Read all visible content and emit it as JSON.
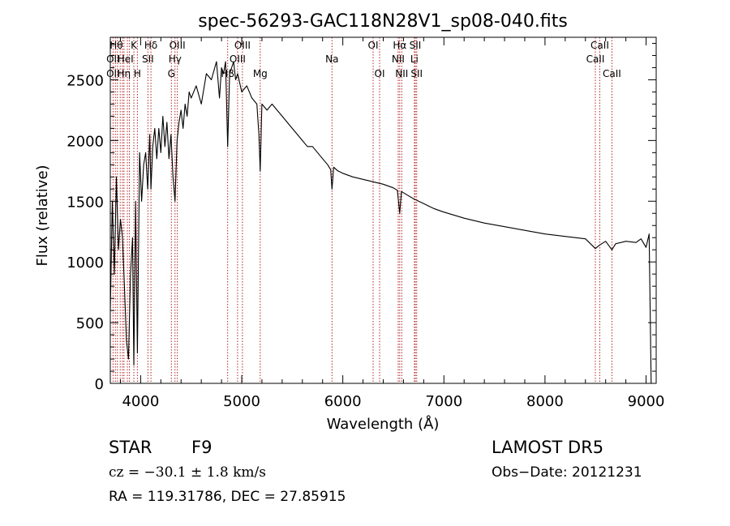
{
  "chart_data": {
    "type": "line",
    "title": "spec-56293-GAC118N28V1_sp08-040.fits",
    "xlabel": "Wavelength (Å)",
    "ylabel": "Flux (relative)",
    "xlim": [
      3700,
      9100
    ],
    "ylim": [
      0,
      2850
    ],
    "xticks": [
      4000,
      5000,
      6000,
      7000,
      8000,
      9000
    ],
    "yticks": [
      0,
      500,
      1000,
      1500,
      2000,
      2500
    ],
    "grid": false,
    "series": [
      {
        "x": [
          3700,
          3720,
          3740,
          3760,
          3780,
          3800,
          3820,
          3840,
          3860,
          3880,
          3900,
          3920,
          3933,
          3950,
          3968,
          3990,
          4010,
          4030,
          4050,
          4070,
          4090,
          4102,
          4120,
          4140,
          4160,
          4180,
          4200,
          4220,
          4240,
          4260,
          4280,
          4300,
          4320,
          4340,
          4360,
          4380,
          4400,
          4420,
          4440,
          4460,
          4480,
          4500,
          4550,
          4600,
          4650,
          4700,
          4750,
          4780,
          4800,
          4820,
          4840,
          4861,
          4880,
          4900,
          4920,
          4940,
          4960,
          5000,
          5050,
          5100,
          5150,
          5170,
          5183,
          5200,
          5250,
          5300,
          5350,
          5400,
          5450,
          5500,
          5550,
          5600,
          5650,
          5700,
          5750,
          5800,
          5850,
          5880,
          5893,
          5910,
          5950,
          6000,
          6100,
          6200,
          6300,
          6400,
          6500,
          6540,
          6563,
          6580,
          6600,
          6700,
          6800,
          6900,
          7000,
          7200,
          7400,
          7600,
          7800,
          8000,
          8200,
          8400,
          8498,
          8542,
          8600,
          8662,
          8700,
          8800,
          8900,
          8950,
          9000,
          9030,
          9050
        ],
        "values": [
          600,
          1500,
          900,
          1700,
          1100,
          1350,
          1200,
          800,
          350,
          200,
          900,
          1200,
          150,
          1500,
          250,
          1900,
          1500,
          1800,
          1900,
          1600,
          2050,
          1600,
          1950,
          2100,
          1850,
          2100,
          1900,
          2200,
          1950,
          2150,
          1850,
          2050,
          1700,
          1500,
          2000,
          2150,
          2250,
          2100,
          2300,
          2200,
          2400,
          2350,
          2450,
          2300,
          2550,
          2500,
          2650,
          2350,
          2600,
          2550,
          2650,
          1950,
          2550,
          2600,
          2650,
          2500,
          2550,
          2400,
          2450,
          2350,
          2300,
          2050,
          1750,
          2300,
          2250,
          2300,
          2250,
          2200,
          2150,
          2100,
          2050,
          2000,
          1950,
          1950,
          1900,
          1850,
          1800,
          1760,
          1600,
          1780,
          1750,
          1730,
          1700,
          1680,
          1660,
          1640,
          1610,
          1590,
          1400,
          1580,
          1570,
          1520,
          1480,
          1440,
          1410,
          1360,
          1320,
          1290,
          1260,
          1230,
          1210,
          1190,
          1110,
          1140,
          1170,
          1100,
          1150,
          1170,
          1160,
          1190,
          1120,
          1230,
          0
        ]
      }
    ],
    "lines": [
      {
        "x": 3727,
        "labels": [
          "OII"
        ]
      },
      {
        "x": 3750,
        "labels": [
          "Hθ"
        ]
      },
      {
        "x": 3770,
        "labels": [
          "Hη"
        ]
      },
      {
        "x": 3798,
        "labels": [
          "Hθ"
        ]
      },
      {
        "x": 3820,
        "labels": [
          "HeI"
        ]
      },
      {
        "x": 3835,
        "labels": [
          "Hη"
        ]
      },
      {
        "x": 3869,
        "labels": [
          "OIII"
        ]
      },
      {
        "x": 3889,
        "labels": [
          "Hζ"
        ]
      },
      {
        "x": 3933,
        "labels": [
          "K"
        ]
      },
      {
        "x": 3968,
        "labels": [
          "H"
        ]
      },
      {
        "x": 4072,
        "labels": [
          "SII"
        ]
      },
      {
        "x": 4102,
        "labels": [
          "Hδ"
        ]
      },
      {
        "x": 4304,
        "labels": [
          "G"
        ]
      },
      {
        "x": 4340,
        "labels": [
          "Hγ"
        ]
      },
      {
        "x": 4363,
        "labels": [
          "OIII"
        ]
      },
      {
        "x": 4861,
        "labels": [
          "Hβ"
        ]
      },
      {
        "x": 4959,
        "labels": [
          "OIII"
        ]
      },
      {
        "x": 5007,
        "labels": [
          "OIII"
        ]
      },
      {
        "x": 5183,
        "labels": [
          "Mg"
        ]
      },
      {
        "x": 5893,
        "labels": [
          "Na"
        ]
      },
      {
        "x": 6300,
        "labels": [
          "OI"
        ]
      },
      {
        "x": 6364,
        "labels": [
          "OI"
        ]
      },
      {
        "x": 6548,
        "labels": [
          "NII"
        ]
      },
      {
        "x": 6563,
        "labels": [
          "Hα"
        ]
      },
      {
        "x": 6583,
        "labels": [
          "NII"
        ]
      },
      {
        "x": 6708,
        "labels": [
          "Li"
        ]
      },
      {
        "x": 6717,
        "labels": [
          "SII"
        ]
      },
      {
        "x": 6731,
        "labels": [
          "SII"
        ]
      },
      {
        "x": 8498,
        "labels": [
          "CaII"
        ]
      },
      {
        "x": 8542,
        "labels": [
          "CaII"
        ]
      },
      {
        "x": 8662,
        "labels": [
          "CaII"
        ]
      }
    ],
    "line_labels": [
      {
        "text": "Hθ",
        "x": 3760,
        "row": 0
      },
      {
        "text": "K",
        "x": 3933,
        "row": 0
      },
      {
        "text": "Hδ",
        "x": 4102,
        "row": 0
      },
      {
        "text": "OIII",
        "x": 4363,
        "row": 0
      },
      {
        "text": "OIII",
        "x": 5007,
        "row": 0
      },
      {
        "text": "OI",
        "x": 6300,
        "row": 0
      },
      {
        "text": "Hα",
        "x": 6563,
        "row": 0
      },
      {
        "text": "SII",
        "x": 6717,
        "row": 0
      },
      {
        "text": "CaII",
        "x": 8542,
        "row": 0
      },
      {
        "text": "OII",
        "x": 3727,
        "row": 1
      },
      {
        "text": "HeI",
        "x": 3850,
        "row": 1
      },
      {
        "text": "SII",
        "x": 4072,
        "row": 1
      },
      {
        "text": "Hγ",
        "x": 4340,
        "row": 1
      },
      {
        "text": "OIII",
        "x": 4959,
        "row": 1
      },
      {
        "text": "Na",
        "x": 5893,
        "row": 1
      },
      {
        "text": "NII",
        "x": 6548,
        "row": 1
      },
      {
        "text": "Li",
        "x": 6708,
        "row": 1
      },
      {
        "text": "CaII",
        "x": 8498,
        "row": 1
      },
      {
        "text": "OII",
        "x": 3727,
        "row": 2
      },
      {
        "text": "Hη",
        "x": 3835,
        "row": 2
      },
      {
        "text": "H",
        "x": 3968,
        "row": 2
      },
      {
        "text": "G",
        "x": 4304,
        "row": 2
      },
      {
        "text": "Hβ",
        "x": 4861,
        "row": 2
      },
      {
        "text": "Mg",
        "x": 5183,
        "row": 2
      },
      {
        "text": "OI",
        "x": 6364,
        "row": 2
      },
      {
        "text": "NII",
        "x": 6583,
        "row": 2
      },
      {
        "text": "SII",
        "x": 6731,
        "row": 2
      },
      {
        "text": "CaII",
        "x": 8662,
        "row": 2
      }
    ],
    "line_color": "#b22222",
    "series_color": "#000000"
  },
  "info": {
    "class": "STAR",
    "subclass": "F9",
    "survey": "LAMOST DR5",
    "cz": "cz = −30.1 ± 1.8 km/s",
    "obs_date": "Obs−Date: 20121231",
    "coords": "RA = 119.31786, DEC =  27.85915"
  }
}
